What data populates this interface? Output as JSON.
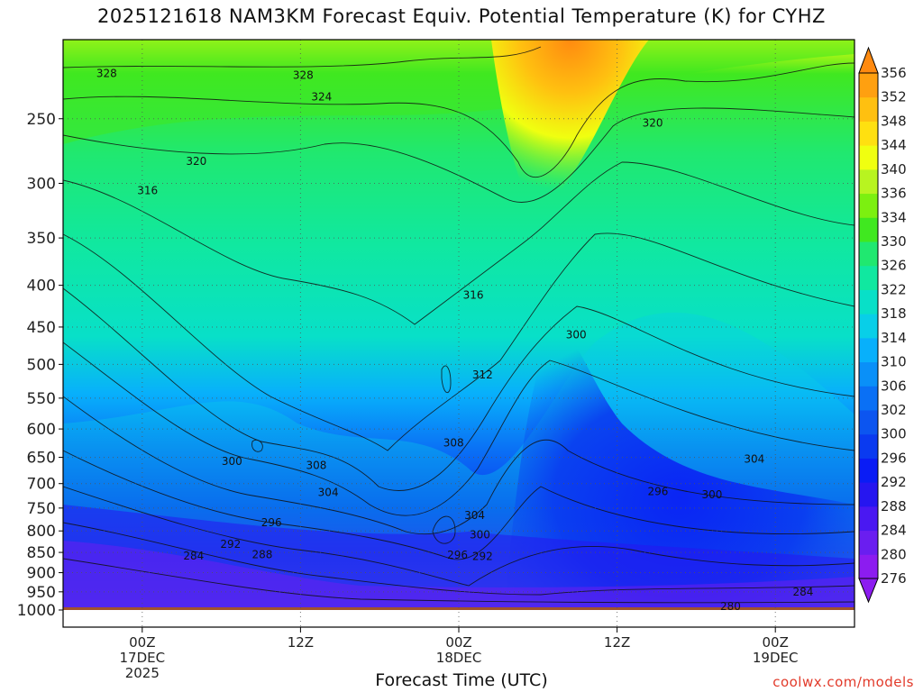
{
  "chart_data": {
    "type": "heatmap",
    "title": "2025121618 NAM3KM Forecast Equiv. Potential Temperature (K) for CYHZ",
    "xlabel": "Forecast Time (UTC)",
    "credit": "coolwx.com/models",
    "x_ticks": [
      {
        "hour": 6,
        "lines": [
          "00Z",
          "17DEC",
          "2025"
        ]
      },
      {
        "hour": 18,
        "lines": [
          "12Z"
        ]
      },
      {
        "hour": 30,
        "lines": [
          "00Z",
          "18DEC"
        ]
      },
      {
        "hour": 42,
        "lines": [
          "12Z"
        ]
      },
      {
        "hour": 54,
        "lines": [
          "00Z",
          "19DEC"
        ]
      }
    ],
    "xlim_hours": [
      0,
      60
    ],
    "y_ticks": [
      250,
      300,
      350,
      400,
      450,
      500,
      550,
      600,
      650,
      700,
      750,
      800,
      850,
      900,
      950,
      1000
    ],
    "ylim_hPa": [
      1000,
      200
    ],
    "y_scale": "log-pressure",
    "colorbar": {
      "levels": [
        276,
        280,
        284,
        288,
        292,
        296,
        300,
        302,
        306,
        310,
        314,
        318,
        322,
        326,
        330,
        334,
        336,
        340,
        344,
        348,
        352,
        356
      ],
      "colors": [
        "#8c1cf0",
        "#6a1ef0",
        "#4a18f2",
        "#2616f0",
        "#0a1cf5",
        "#0a3af0",
        "#0c55f0",
        "#0a70f5",
        "#0a90f8",
        "#08b0fb",
        "#08cfe8",
        "#08e0c8",
        "#10e8a0",
        "#20e870",
        "#40e820",
        "#7cf010",
        "#b8f420",
        "#f0ff10",
        "#ffe010",
        "#ffc010",
        "#ffa010",
        "#ff8a10"
      ]
    },
    "contour_labels": [
      {
        "value": "328",
        "hour": 3.3,
        "hPa": 220
      },
      {
        "value": "328",
        "hour": 18.2,
        "hPa": 221
      },
      {
        "value": "324",
        "hour": 19.6,
        "hPa": 235
      },
      {
        "value": "320",
        "hour": 10.1,
        "hPa": 282
      },
      {
        "value": "320",
        "hour": 44.7,
        "hPa": 253
      },
      {
        "value": "316",
        "hour": 6.4,
        "hPa": 306
      },
      {
        "value": "316",
        "hour": 31.1,
        "hPa": 411
      },
      {
        "value": "312",
        "hour": 31.8,
        "hPa": 515
      },
      {
        "value": "308",
        "hour": 29.6,
        "hPa": 624
      },
      {
        "value": "308",
        "hour": 19.2,
        "hPa": 665
      },
      {
        "value": "300",
        "hour": 38.9,
        "hPa": 460
      },
      {
        "value": "300",
        "hour": 12.8,
        "hPa": 657
      },
      {
        "value": "300",
        "hour": 49.2,
        "hPa": 722
      },
      {
        "value": "304",
        "hour": 52.4,
        "hPa": 653
      },
      {
        "value": "304",
        "hour": 20.1,
        "hPa": 718
      },
      {
        "value": "304",
        "hour": 31.2,
        "hPa": 766
      },
      {
        "value": "300",
        "hour": 31.6,
        "hPa": 809
      },
      {
        "value": "296",
        "hour": 15.8,
        "hPa": 781
      },
      {
        "value": "296",
        "hour": 45.1,
        "hPa": 716
      },
      {
        "value": "296",
        "hour": 29.9,
        "hPa": 856
      },
      {
        "value": "292",
        "hour": 12.7,
        "hPa": 831
      },
      {
        "value": "292",
        "hour": 31.8,
        "hPa": 860
      },
      {
        "value": "288",
        "hour": 15.1,
        "hPa": 855
      },
      {
        "value": "284",
        "hour": 9.9,
        "hPa": 858
      },
      {
        "value": "284",
        "hour": 56.1,
        "hPa": 950
      },
      {
        "value": "280",
        "hour": 50.6,
        "hPa": 990
      }
    ]
  }
}
